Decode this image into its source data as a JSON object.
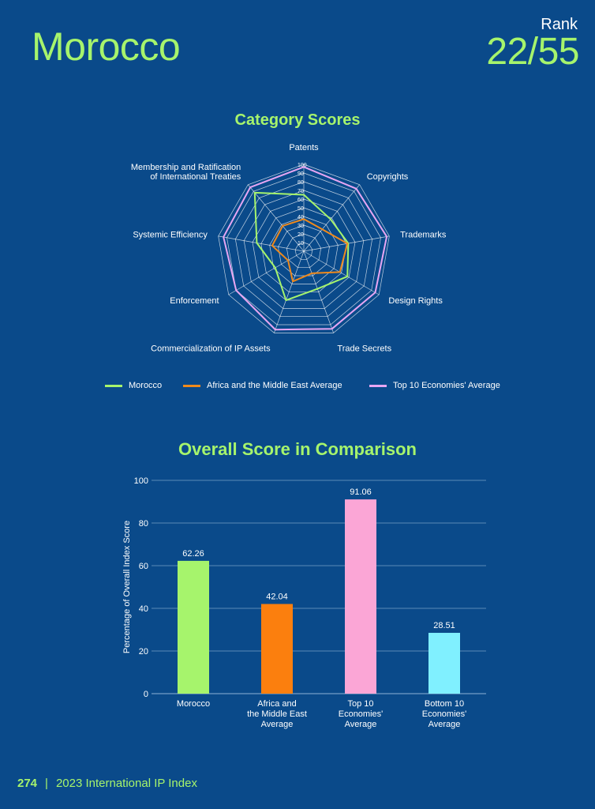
{
  "header": {
    "country": "Morocco",
    "rank_label": "Rank",
    "rank_value": "22/55"
  },
  "footer": {
    "page_number": "274",
    "separator": "|",
    "title": "2023 International IP Index"
  },
  "chart_data": [
    {
      "type": "radar",
      "title": "Category Scores",
      "axes": [
        "Patents",
        "Copyrights",
        "Trademarks",
        "Design Rights",
        "Trade Secrets",
        "Commercialization of IP Assets",
        "Enforcement",
        "Systemic Efficiency",
        "Membership and Ratification of International Treaties"
      ],
      "axis_label_lines": [
        [
          "Patents"
        ],
        [
          "Copyrights"
        ],
        [
          "Trademarks"
        ],
        [
          "Design Rights"
        ],
        [
          "Trade Secrets"
        ],
        [
          "Commercialization of IP Assets"
        ],
        [
          "Enforcement"
        ],
        [
          "Systemic Efficiency"
        ],
        [
          "Membership and Ratification",
          "of International Treaties"
        ]
      ],
      "range": [
        0,
        100
      ],
      "ticks": [
        10,
        20,
        30,
        40,
        50,
        60,
        70,
        80,
        90,
        100
      ],
      "series": [
        {
          "name": "Morocco",
          "color": "#a6f46c",
          "values": [
            65,
            48,
            52,
            58,
            46,
            60,
            38,
            55,
            88
          ]
        },
        {
          "name": "Africa and the Middle East Average",
          "color": "#f08a1c",
          "values": [
            37,
            33,
            51,
            48,
            27,
            37,
            21,
            37,
            38
          ]
        },
        {
          "name": "Top 10 Economies' Average",
          "color": "#e7a6f3",
          "values": [
            97,
            94,
            97,
            95,
            95,
            96,
            90,
            94,
            96
          ]
        }
      ],
      "legend_position": "bottom"
    },
    {
      "type": "bar",
      "title": "Overall Score in Comparison",
      "ylabel": "Percentage of Overall Index Score",
      "ylim": [
        0,
        100
      ],
      "yticks": [
        0,
        20,
        40,
        60,
        80,
        100
      ],
      "grid": true,
      "categories": [
        [
          "Morocco"
        ],
        [
          "Africa and",
          "the Middle East",
          "Average"
        ],
        [
          "Top 10",
          "Economies'",
          "Average"
        ],
        [
          "Bottom 10",
          "Economies'",
          "Average"
        ]
      ],
      "values": [
        62.26,
        42.04,
        91.06,
        28.51
      ],
      "value_labels": [
        "62.26",
        "42.04",
        "91.06",
        "28.51"
      ],
      "colors": [
        "#a6f46c",
        "#fb7f0e",
        "#fba6d6",
        "#80f0ff"
      ]
    }
  ]
}
